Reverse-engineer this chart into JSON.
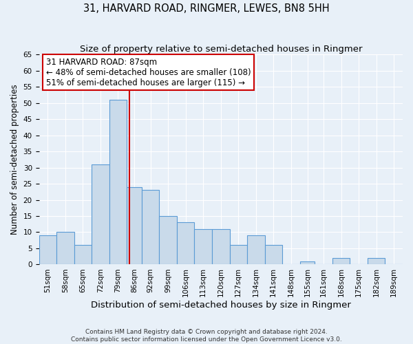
{
  "title": "31, HARVARD ROAD, RINGMER, LEWES, BN8 5HH",
  "subtitle": "Size of property relative to semi-detached houses in Ringmer",
  "xlabel": "Distribution of semi-detached houses by size in Ringmer",
  "ylabel": "Number of semi-detached properties",
  "bin_labels": [
    "51sqm",
    "58sqm",
    "65sqm",
    "72sqm",
    "79sqm",
    "86sqm",
    "92sqm",
    "99sqm",
    "106sqm",
    "113sqm",
    "120sqm",
    "127sqm",
    "134sqm",
    "141sqm",
    "148sqm",
    "155sqm",
    "161sqm",
    "168sqm",
    "175sqm",
    "182sqm",
    "189sqm"
  ],
  "bin_edges": [
    51,
    58,
    65,
    72,
    79,
    86,
    92,
    99,
    106,
    113,
    120,
    127,
    134,
    141,
    148,
    155,
    161,
    168,
    175,
    182,
    189,
    196
  ],
  "counts": [
    9,
    10,
    6,
    31,
    51,
    24,
    23,
    15,
    13,
    11,
    11,
    6,
    9,
    6,
    0,
    1,
    0,
    2,
    0,
    2,
    0
  ],
  "bar_color": "#c9daea",
  "bar_edge_color": "#5b9bd5",
  "property_line_x": 87,
  "vline_color": "#cc0000",
  "annotation_line1": "31 HARVARD ROAD: 87sqm",
  "annotation_line2": "← 48% of semi-detached houses are smaller (108)",
  "annotation_line3": "51% of semi-detached houses are larger (115) →",
  "annotation_box_color": "#ffffff",
  "annotation_box_edge": "#cc0000",
  "ylim": [
    0,
    65
  ],
  "yticks": [
    0,
    5,
    10,
    15,
    20,
    25,
    30,
    35,
    40,
    45,
    50,
    55,
    60,
    65
  ],
  "background_color": "#e8f0f8",
  "footer_line1": "Contains HM Land Registry data © Crown copyright and database right 2024.",
  "footer_line2": "Contains public sector information licensed under the Open Government Licence v3.0.",
  "title_fontsize": 10.5,
  "subtitle_fontsize": 9.5,
  "xlabel_fontsize": 9.5,
  "ylabel_fontsize": 8.5,
  "tick_fontsize": 7.5,
  "annotation_fontsize": 8.5,
  "footer_fontsize": 6.5
}
